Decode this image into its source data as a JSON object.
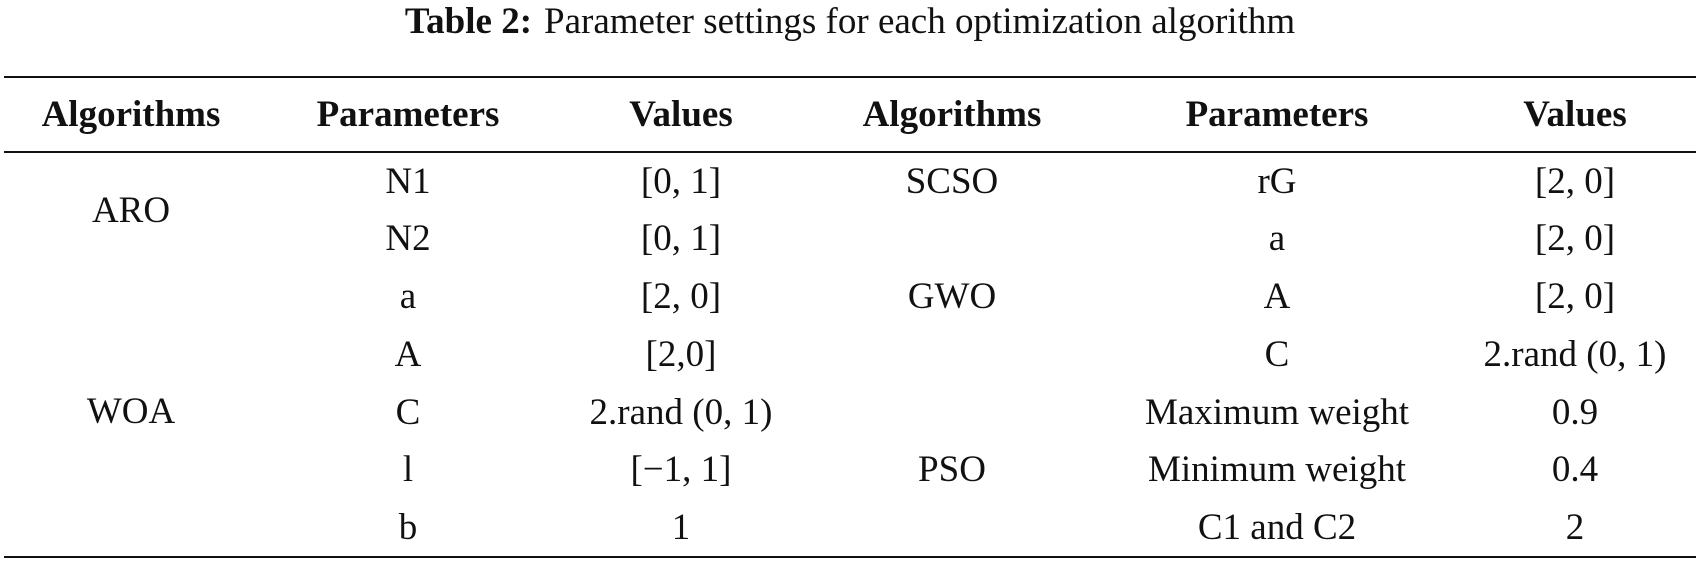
{
  "caption": {
    "label": "Table 2:",
    "text": "Parameter settings for each optimization algorithm"
  },
  "table": {
    "headers": [
      "Algorithms",
      "Parameters",
      "Values",
      "Algorithms",
      "Parameters",
      "Values"
    ],
    "left": [
      {
        "algorithm": "ARO",
        "parameters": [
          {
            "name": "N1",
            "value": "[0, 1]"
          },
          {
            "name": "N2",
            "value": "[0, 1]"
          }
        ]
      },
      {
        "algorithm": "WOA",
        "parameters": [
          {
            "name": "a",
            "value": "[2, 0]"
          },
          {
            "name": "A",
            "value": "[2,0]"
          },
          {
            "name": "C",
            "value": "2.rand (0, 1)"
          },
          {
            "name": "l",
            "value": "[−1, 1]"
          },
          {
            "name": "b",
            "value": "1"
          }
        ]
      }
    ],
    "right": [
      {
        "algorithm": "SCSO",
        "parameters": [
          {
            "name": "rG",
            "value": "[2, 0]"
          }
        ]
      },
      {
        "algorithm": "GWO",
        "parameters": [
          {
            "name": "a",
            "value": "[2, 0]"
          },
          {
            "name": "A",
            "value": "[2, 0]"
          },
          {
            "name": "C",
            "value": "2.rand (0, 1)"
          }
        ]
      },
      {
        "algorithm": "PSO",
        "parameters": [
          {
            "name": "Maximum weight",
            "value": "0.9"
          },
          {
            "name": "Minimum weight",
            "value": "0.4"
          },
          {
            "name": "C1 and C2",
            "value": "2"
          }
        ]
      }
    ]
  }
}
